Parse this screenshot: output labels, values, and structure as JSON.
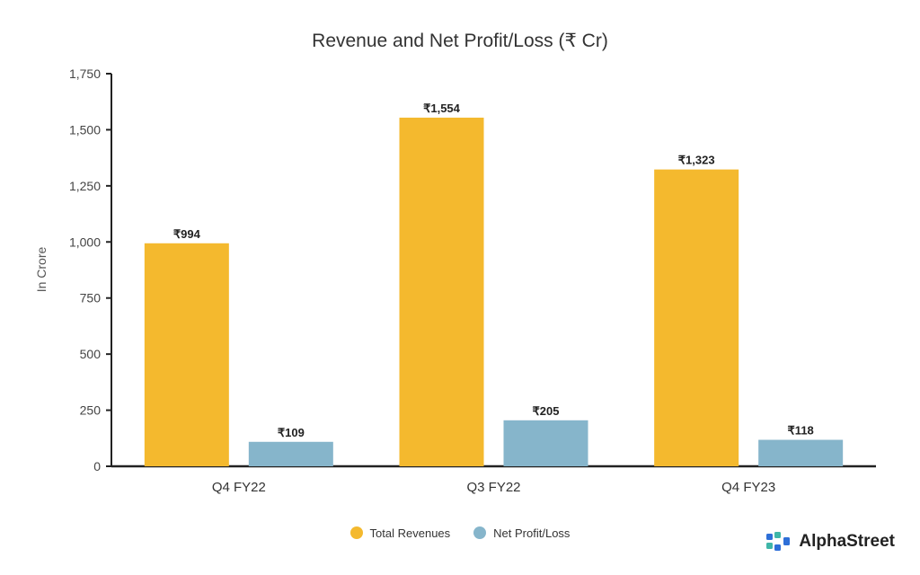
{
  "chart_data": {
    "type": "bar",
    "title": "Revenue and Net Profit/Loss (₹ Cr)",
    "ylabel": "In Crore",
    "xlabel": "",
    "categories": [
      "Q4 FY22",
      "Q3 FY22",
      "Q4 FY23"
    ],
    "series": [
      {
        "name": "Total Revenues",
        "color": "#F4B92E",
        "values": [
          994,
          1554,
          1323
        ],
        "labels": [
          "₹994",
          "₹1,554",
          "₹1,323"
        ]
      },
      {
        "name": "Net Profit/Loss",
        "color": "#86B5CB",
        "values": [
          109,
          205,
          118
        ],
        "labels": [
          "₹109",
          "₹205",
          "₹118"
        ]
      }
    ],
    "ylim": [
      0,
      1750
    ],
    "yticks": [
      0,
      250,
      500,
      750,
      1000,
      1250,
      1500,
      1750
    ],
    "ytick_labels": [
      "0",
      "250",
      "500",
      "750",
      "1,000",
      "1,250",
      "1,500",
      "1,750"
    ],
    "grid": false,
    "legend": "bottom-center"
  },
  "brand": {
    "name": "AlphaStreet",
    "logo_icon": "alphastreet-logo-icon"
  }
}
